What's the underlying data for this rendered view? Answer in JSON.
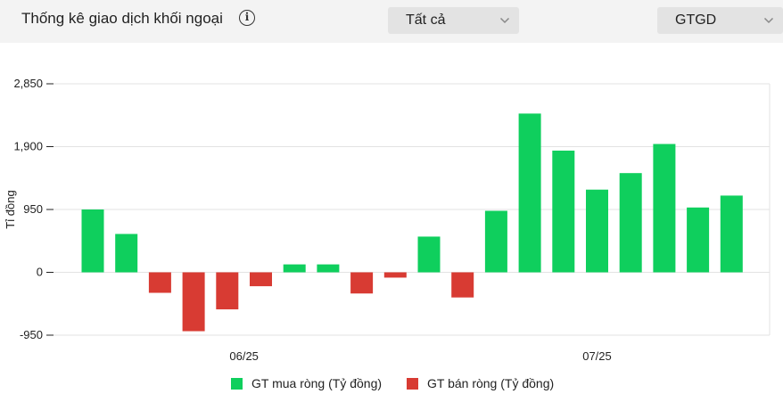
{
  "header": {
    "title": "Thống kê giao dịch khối ngoại",
    "info_icon": "info-icon",
    "filter_dropdown": {
      "selected": "Tất cả",
      "icon": "chevron-down-icon"
    },
    "metric_dropdown": {
      "selected": "GTGD",
      "icon": "chevron-down-icon"
    }
  },
  "colors": {
    "buy": "#0fcf5d",
    "sell": "#d83b33",
    "grid": "#e3e3e3",
    "header_bg": "#f3f3f3",
    "dropdown_bg": "#e3e3e3"
  },
  "chart_data": {
    "type": "bar",
    "ylabel": "Tỉ đồng",
    "ylim": [
      -950,
      2850
    ],
    "yticks": [
      -950,
      0,
      950,
      1900,
      2850
    ],
    "ytick_labels": [
      "-950",
      "0",
      "950",
      "1,900",
      "2,850"
    ],
    "xtick_labels": [
      {
        "label": "06/25",
        "index": 4.5
      },
      {
        "label": "07/25",
        "index": 15
      }
    ],
    "grid": true,
    "legend_position": "bottom",
    "series": [
      {
        "name": "GT mua ròng (Tỷ đồng)",
        "color": "#0fcf5d"
      },
      {
        "name": "GT bán ròng (Tỷ đồng)",
        "color": "#d83b33"
      }
    ],
    "values": [
      950,
      580,
      -310,
      -890,
      -560,
      -210,
      120,
      120,
      -320,
      -80,
      540,
      -380,
      930,
      2400,
      1840,
      1250,
      1500,
      1940,
      980,
      1160
    ]
  }
}
